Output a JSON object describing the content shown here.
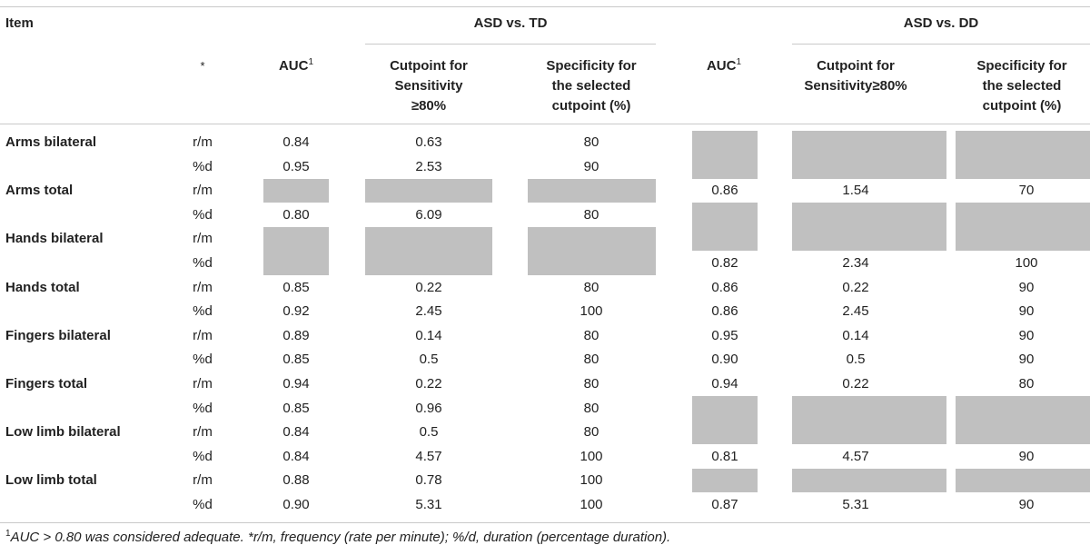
{
  "header": {
    "item": "Item",
    "group1": "ASD vs. TD",
    "group2": "ASD vs. DD",
    "star": "*",
    "auc": "AUC",
    "auc_sup": "1",
    "cut1_l1": "Cutpoint for",
    "cut1_l2": "Sensitivity",
    "cut1_l3": "≥80%",
    "spec_l1": "Specificity for",
    "spec_l2": "the selected",
    "spec_l3": "cutpoint (%)",
    "cut2_l1": "Cutpoint for",
    "cut2_l2": "Sensitivity≥80%"
  },
  "rows": [
    {
      "item": "Arms bilateral",
      "m": "r/m",
      "auc1": "0.84",
      "cut1": "0.63",
      "spec1": "80",
      "auc2": "",
      "cut2": "",
      "spec2": ""
    },
    {
      "item": "",
      "m": "%d",
      "auc1": "0.95",
      "cut1": "2.53",
      "spec1": "90",
      "auc2": "",
      "cut2": "",
      "spec2": ""
    },
    {
      "item": "Arms total",
      "m": "r/m",
      "auc1": "",
      "cut1": "",
      "spec1": "",
      "auc2": "0.86",
      "cut2": "1.54",
      "spec2": "70"
    },
    {
      "item": "",
      "m": "%d",
      "auc1": "0.80",
      "cut1": "6.09",
      "spec1": "80",
      "auc2": "",
      "cut2": "",
      "spec2": ""
    },
    {
      "item": "Hands bilateral",
      "m": "r/m",
      "auc1": "",
      "cut1": "",
      "spec1": "",
      "auc2": "",
      "cut2": "",
      "spec2": ""
    },
    {
      "item": "",
      "m": "%d",
      "auc1": "",
      "cut1": "",
      "spec1": "",
      "auc2": "0.82",
      "cut2": "2.34",
      "spec2": "100"
    },
    {
      "item": "Hands total",
      "m": "r/m",
      "auc1": "0.85",
      "cut1": "0.22",
      "spec1": "80",
      "auc2": "0.86",
      "cut2": "0.22",
      "spec2": "90"
    },
    {
      "item": "",
      "m": "%d",
      "auc1": "0.92",
      "cut1": "2.45",
      "spec1": "100",
      "auc2": "0.86",
      "cut2": "2.45",
      "spec2": "90"
    },
    {
      "item": "Fingers bilateral",
      "m": "r/m",
      "auc1": "0.89",
      "cut1": "0.14",
      "spec1": "80",
      "auc2": "0.95",
      "cut2": "0.14",
      "spec2": "90"
    },
    {
      "item": "",
      "m": "%d",
      "auc1": "0.85",
      "cut1": "0.5",
      "spec1": "80",
      "auc2": "0.90",
      "cut2": "0.5",
      "spec2": "90"
    },
    {
      "item": "Fingers total",
      "m": "r/m",
      "auc1": "0.94",
      "cut1": "0.22",
      "spec1": "80",
      "auc2": "0.94",
      "cut2": "0.22",
      "spec2": "80"
    },
    {
      "item": "",
      "m": "%d",
      "auc1": "0.85",
      "cut1": "0.96",
      "spec1": "80",
      "auc2": "",
      "cut2": "",
      "spec2": ""
    },
    {
      "item": "Low limb bilateral",
      "m": "r/m",
      "auc1": "0.84",
      "cut1": "0.5",
      "spec1": "80",
      "auc2": "",
      "cut2": "",
      "spec2": ""
    },
    {
      "item": "",
      "m": "%d",
      "auc1": "0.84",
      "cut1": "4.57",
      "spec1": "100",
      "auc2": "0.81",
      "cut2": "4.57",
      "spec2": "90"
    },
    {
      "item": "Low limb total",
      "m": "r/m",
      "auc1": "0.88",
      "cut1": "0.78",
      "spec1": "100",
      "auc2": "",
      "cut2": "",
      "spec2": ""
    },
    {
      "item": "",
      "m": "%d",
      "auc1": "0.90",
      "cut1": "5.31",
      "spec1": "100",
      "auc2": "0.87",
      "cut2": "5.31",
      "spec2": "90"
    }
  ],
  "footnote": {
    "sup": "1",
    "text": "AUC > 0.80 was considered adequate. *r/m, frequency (rate per minute); %/d, duration (percentage duration)."
  },
  "colors": {
    "shade": "#c0c0c0",
    "rule": "#c9c9c9",
    "text": "#222222"
  }
}
